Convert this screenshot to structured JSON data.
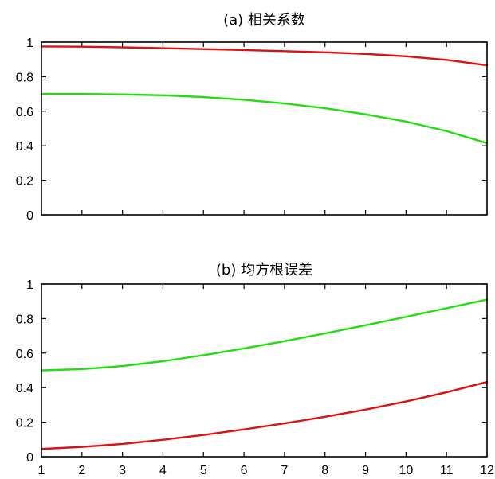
{
  "chart_data": [
    {
      "type": "line",
      "title": "(a) 相关系数",
      "x": [
        1,
        2,
        3,
        4,
        5,
        6,
        7,
        8,
        9,
        10,
        11,
        12
      ],
      "xlim": [
        1,
        12
      ],
      "ylim": [
        0,
        1
      ],
      "xticks": [
        "1",
        "2",
        "3",
        "4",
        "5",
        "6",
        "7",
        "8",
        "9",
        "10",
        "11",
        "12"
      ],
      "yticks": [
        "0",
        "0.2",
        "0.4",
        "0.6",
        "0.8",
        "1"
      ],
      "show_xtick_labels": false,
      "grid": false,
      "series": [
        {
          "color": "#dd1111",
          "values": [
            0.975,
            0.974,
            0.97,
            0.965,
            0.96,
            0.954,
            0.948,
            0.941,
            0.932,
            0.918,
            0.897,
            0.866
          ]
        },
        {
          "color": "#22dd11",
          "values": [
            0.7,
            0.7,
            0.697,
            0.692,
            0.682,
            0.666,
            0.645,
            0.617,
            0.582,
            0.54,
            0.485,
            0.415
          ]
        }
      ]
    },
    {
      "type": "line",
      "title": "(b) 均方根误差",
      "x": [
        1,
        2,
        3,
        4,
        5,
        6,
        7,
        8,
        9,
        10,
        11,
        12
      ],
      "xlim": [
        1,
        12
      ],
      "ylim": [
        0,
        1
      ],
      "xticks": [
        "1",
        "2",
        "3",
        "4",
        "5",
        "6",
        "7",
        "8",
        "9",
        "10",
        "11",
        "12"
      ],
      "yticks": [
        "0",
        "0.2",
        "0.4",
        "0.6",
        "0.8",
        "1"
      ],
      "show_xtick_labels": true,
      "grid": false,
      "series": [
        {
          "color": "#22dd11",
          "values": [
            0.5,
            0.507,
            0.525,
            0.553,
            0.588,
            0.627,
            0.669,
            0.714,
            0.761,
            0.81,
            0.86,
            0.91
          ]
        },
        {
          "color": "#dd1111",
          "values": [
            0.045,
            0.057,
            0.074,
            0.098,
            0.126,
            0.158,
            0.193,
            0.231,
            0.273,
            0.32,
            0.373,
            0.433
          ]
        }
      ]
    }
  ]
}
